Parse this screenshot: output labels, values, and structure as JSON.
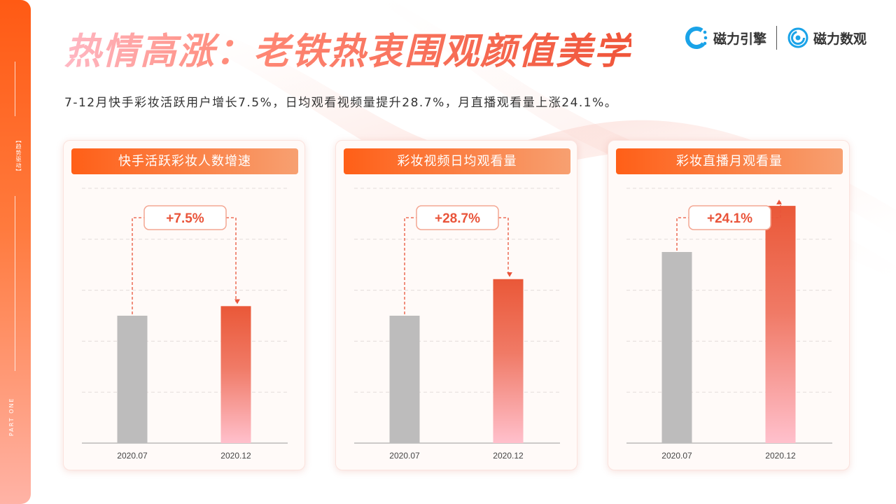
{
  "header": {
    "title": "热情高涨：老铁热衷围观颜值美学",
    "subtitle": "7-12月快手彩妆活跃用户增长7.5%，日均观看视频量提升28.7%，月直播观看量上涨24.1%。"
  },
  "sidebar": {
    "tag": "【趋势驱动】",
    "part": "PART ONE"
  },
  "logos": {
    "brand1": {
      "name": "磁力引擎",
      "icon": "magnet-engine-icon",
      "color": "#1aa3e8"
    },
    "brand2": {
      "name": "磁力数观",
      "icon": "magnet-insight-icon",
      "color": "#1aa3e8"
    }
  },
  "colors": {
    "accent": "#e9543a",
    "bar_before": "#bdbcbc",
    "bar_after_top": "#ea5838",
    "bar_after_bottom": "#ffc0cc"
  },
  "chart_data": [
    {
      "type": "bar",
      "title": "快手活跃彩妆人数增速",
      "categories": [
        "2020.07",
        "2020.12"
      ],
      "values": [
        1.0,
        1.075
      ],
      "annotation": "+7.5%",
      "ylim": [
        0,
        2.0
      ],
      "grid": true
    },
    {
      "type": "bar",
      "title": "彩妆视频日均观看量",
      "categories": [
        "2020.07",
        "2020.12"
      ],
      "values": [
        1.0,
        1.287
      ],
      "annotation": "+28.7%",
      "ylim": [
        0,
        2.0
      ],
      "grid": true
    },
    {
      "type": "bar",
      "title": "彩妆直播月观看量",
      "categories": [
        "2020.07",
        "2020.12"
      ],
      "values": [
        1.5,
        1.862
      ],
      "annotation": "+24.1%",
      "ylim": [
        0,
        2.0
      ],
      "grid": true
    }
  ]
}
